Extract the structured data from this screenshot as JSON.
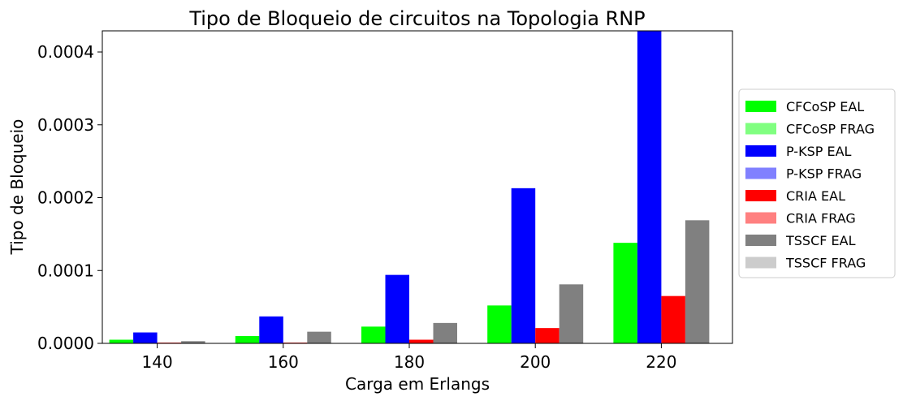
{
  "chart_data": {
    "type": "bar",
    "title": "Tipo de Bloqueio de circuitos na Topologia RNP",
    "xlabel": "Carga em Erlangs",
    "ylabel": "Tipo de Bloqueio",
    "categories": [
      "140",
      "160",
      "180",
      "200",
      "220"
    ],
    "ylim": [
      0,
      0.000429
    ],
    "yticks": [
      0,
      0.0001,
      0.0002,
      0.0003,
      0.0004
    ],
    "ytick_labels": [
      "0.0000",
      "0.0001",
      "0.0002",
      "0.0003",
      "0.0004"
    ],
    "legend_position": "right, outside plot",
    "grid": false,
    "stacked": true,
    "series": [
      {
        "name": "CFCoSP EAL",
        "color": "#00ff00",
        "group": 0,
        "values": [
          5e-06,
          1e-05,
          2.3e-05,
          5.2e-05,
          0.000138
        ]
      },
      {
        "name": "CFCoSP FRAG",
        "color": "#80ff80",
        "group": 0,
        "values": [
          0,
          0,
          0,
          0,
          0
        ]
      },
      {
        "name": "P-KSP EAL",
        "color": "#0000ff",
        "group": 1,
        "values": [
          1.5e-05,
          3.7e-05,
          9.4e-05,
          0.000213,
          0.000429
        ]
      },
      {
        "name": "P-KSP FRAG",
        "color": "#8080ff",
        "group": 1,
        "values": [
          0,
          0,
          0,
          0,
          0
        ]
      },
      {
        "name": "CRIA EAL",
        "color": "#ff0000",
        "group": 2,
        "values": [
          1e-06,
          1e-06,
          5e-06,
          2.1e-05,
          6.5e-05
        ]
      },
      {
        "name": "CRIA FRAG",
        "color": "#ff8080",
        "group": 2,
        "values": [
          0,
          0,
          0,
          0,
          0
        ]
      },
      {
        "name": "TSSCF EAL",
        "color": "#808080",
        "group": 3,
        "values": [
          3e-06,
          1.6e-05,
          2.8e-05,
          8.1e-05,
          0.000169
        ]
      },
      {
        "name": "TSSCF FRAG",
        "color": "#cccccc",
        "group": 3,
        "values": [
          0,
          0,
          0,
          0,
          0
        ]
      }
    ]
  }
}
